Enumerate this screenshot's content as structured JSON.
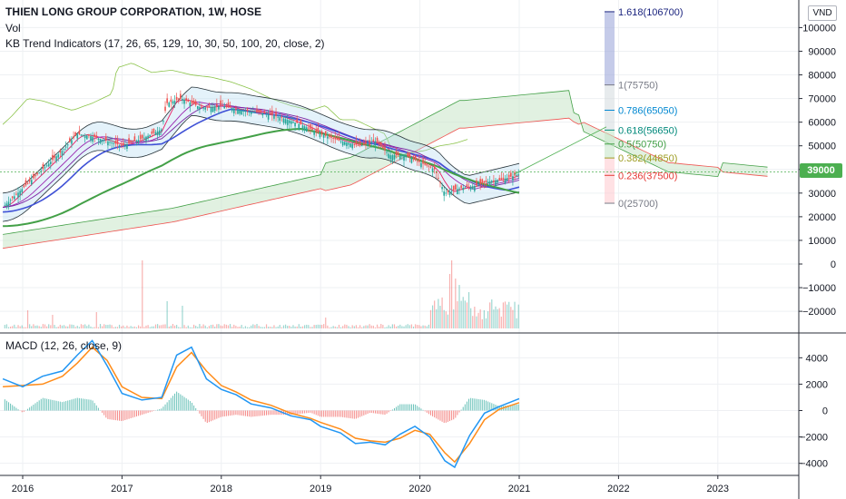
{
  "header": {
    "title": "THIEN LONG GROUP CORPORATION, 1W, HOSE",
    "vol_label": "Vol",
    "indicator_label": "KB Trend Indicators (17, 26, 65, 129, 10, 30, 50, 100, 20, close, 2)",
    "macd_label": "MACD (12, 26, close, 9)",
    "unit": "VND",
    "last_price": "39000"
  },
  "colors": {
    "up": "#26a69a",
    "down": "#ef5350",
    "ma_blue": "#3f51d6",
    "ma_green": "#43a047",
    "cloud_green": "#c8e6c9",
    "cloud_red": "#ffcdd2",
    "bollinger_fill": "#b3d9f2",
    "macd_line": "#2196f3",
    "signal_line": "#ff8c1a",
    "last_price": "#4caf50"
  },
  "chart_data": [
    {
      "type": "line",
      "title": "THIEN LONG GROUP CORPORATION, 1W, HOSE",
      "x_ticks": [
        "2016",
        "2017",
        "2018",
        "2019",
        "2020",
        "2021",
        "2022",
        "2023"
      ],
      "y_ticks": [
        100000,
        90000,
        80000,
        70000,
        60000,
        50000,
        40000,
        30000,
        20000,
        10000,
        0,
        -10000,
        -20000
      ],
      "ylim": [
        -25000,
        110000
      ],
      "xlim": [
        2015.8,
        2023.85
      ],
      "last_price": 39000,
      "price_x": [
        2015.8,
        2016.0,
        2016.2,
        2016.4,
        2016.55,
        2016.7,
        2016.85,
        2017.0,
        2017.2,
        2017.4,
        2017.45,
        2017.6,
        2017.8,
        2018.0,
        2018.2,
        2018.4,
        2018.6,
        2018.8,
        2019.0,
        2019.2,
        2019.4,
        2019.55,
        2019.7,
        2019.85,
        2020.0,
        2020.15,
        2020.25,
        2020.4,
        2020.55,
        2020.7,
        2020.85,
        2021.0
      ],
      "price": [
        24000,
        32000,
        40000,
        48000,
        55000,
        54000,
        52000,
        50000,
        53000,
        57000,
        68000,
        70000,
        66000,
        67000,
        65000,
        64000,
        62000,
        59000,
        55000,
        52000,
        50000,
        52000,
        46000,
        46000,
        43000,
        40000,
        30000,
        32000,
        33000,
        35000,
        36000,
        38000
      ],
      "fibonacci": [
        {
          "level": "1.618",
          "price": 106700,
          "label": "1.618(106700)"
        },
        {
          "level": "1",
          "price": 75750,
          "label": "1(75750)"
        },
        {
          "level": "0.786",
          "price": 65050,
          "label": "0.786(65050)"
        },
        {
          "level": "0.618",
          "price": 56650,
          "label": "0.618(56650)"
        },
        {
          "level": "0.5",
          "price": 50750,
          "label": "0.5(50750)"
        },
        {
          "level": "0.382",
          "price": 44850,
          "label": "0.382(44850)"
        },
        {
          "level": "0.236",
          "price": 37500,
          "label": "0.236(37500)"
        },
        {
          "level": "0",
          "price": 25700,
          "label": "0(25700)"
        }
      ],
      "volume_note": "Vol"
    },
    {
      "type": "line",
      "title": "MACD (12, 26, close, 9)",
      "y_ticks": [
        4000,
        2000,
        0,
        -2000,
        -4000
      ],
      "ylim": [
        -5200,
        5500
      ],
      "macd_x": [
        2015.8,
        2016.0,
        2016.2,
        2016.4,
        2016.55,
        2016.7,
        2016.85,
        2017.0,
        2017.2,
        2017.4,
        2017.55,
        2017.7,
        2017.85,
        2018.0,
        2018.15,
        2018.3,
        2018.5,
        2018.7,
        2018.9,
        2019.0,
        2019.2,
        2019.35,
        2019.5,
        2019.65,
        2019.8,
        2019.95,
        2020.1,
        2020.25,
        2020.35,
        2020.5,
        2020.65,
        2020.8,
        2021.0
      ],
      "macd": [
        2400,
        1800,
        2600,
        3000,
        4200,
        5300,
        3400,
        1300,
        800,
        1000,
        4200,
        4800,
        2400,
        1600,
        1200,
        500,
        200,
        -400,
        -700,
        -1200,
        -1700,
        -2500,
        -2400,
        -2600,
        -1800,
        -1200,
        -2000,
        -3800,
        -4300,
        -1900,
        -200,
        300,
        900
      ],
      "signal": [
        1800,
        1900,
        2000,
        2600,
        3600,
        4800,
        3800,
        1800,
        1000,
        900,
        3300,
        4400,
        3000,
        1900,
        1400,
        800,
        400,
        -200,
        -600,
        -900,
        -1400,
        -2100,
        -2300,
        -2400,
        -2100,
        -1500,
        -1800,
        -3200,
        -3900,
        -2500,
        -700,
        100,
        600
      ]
    }
  ]
}
